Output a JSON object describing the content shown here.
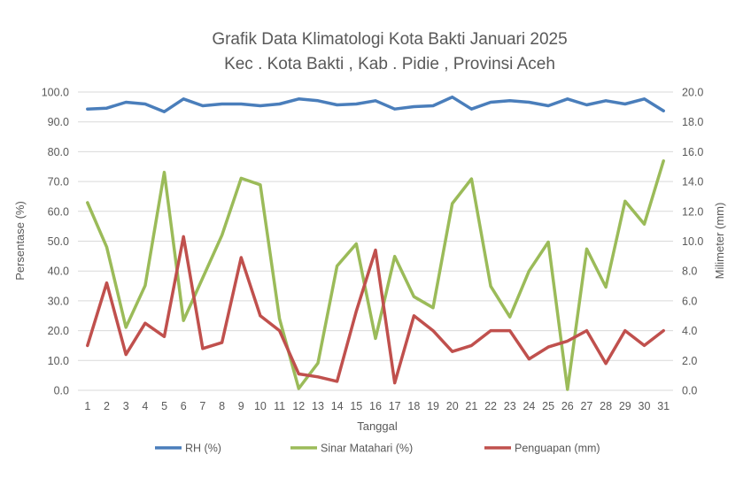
{
  "chart_data": {
    "type": "line",
    "title": "Grafik Data Klimatologi Kota Bakti Januari 2025",
    "subtitle": "Kec . Kota Bakti , Kab . Pidie , Provinsi  Aceh",
    "xlabel": "Tanggal",
    "ylabel": "Persentase (%)",
    "y2label": "Milimeter (mm)",
    "x": [
      1,
      2,
      3,
      4,
      5,
      6,
      7,
      8,
      9,
      10,
      11,
      12,
      13,
      14,
      15,
      16,
      17,
      18,
      19,
      20,
      21,
      22,
      23,
      24,
      25,
      26,
      27,
      28,
      29,
      30,
      31
    ],
    "ylim": [
      0,
      100
    ],
    "y2lim": [
      0,
      20
    ],
    "yticks": [
      "0.0",
      "10.0",
      "20.0",
      "30.0",
      "40.0",
      "50.0",
      "60.0",
      "70.0",
      "80.0",
      "90.0",
      "100.0"
    ],
    "y2ticks": [
      "0.0",
      "2.0",
      "4.0",
      "6.0",
      "8.0",
      "10.0",
      "12.0",
      "14.0",
      "16.0",
      "18.0",
      "20.0"
    ],
    "grid": "horizontal",
    "legend_position": "bottom",
    "series": [
      {
        "name": "RH (%)",
        "axis": "left",
        "color": "#4a7ebb",
        "values": [
          94.3,
          94.6,
          96.6,
          96.0,
          93.4,
          97.7,
          95.4,
          96.0,
          96.0,
          95.4,
          96.0,
          97.7,
          97.1,
          95.7,
          96.0,
          97.1,
          94.3,
          95.1,
          95.4,
          98.3,
          94.3,
          96.6,
          97.1,
          96.6,
          95.4,
          97.7,
          95.7,
          97.1,
          96.0,
          97.7,
          93.7
        ]
      },
      {
        "name": "Sinar Matahari (%)",
        "axis": "left",
        "color": "#9bbb59",
        "values": [
          62.9,
          48.0,
          21.1,
          35.1,
          73.1,
          23.4,
          37.7,
          52.0,
          71.1,
          68.9,
          24.0,
          0.6,
          9.1,
          41.7,
          49.1,
          17.4,
          44.9,
          31.4,
          27.7,
          62.6,
          70.9,
          34.9,
          24.6,
          40.0,
          49.7,
          0.3,
          47.4,
          34.6,
          63.4,
          55.7,
          76.9
        ]
      },
      {
        "name": "Penguapan (mm)",
        "axis": "right",
        "color": "#c0504d",
        "values": [
          3.0,
          7.2,
          2.4,
          4.5,
          3.6,
          10.3,
          2.8,
          3.2,
          8.9,
          5.0,
          4.0,
          1.1,
          0.9,
          0.6,
          5.3,
          9.4,
          0.5,
          5.0,
          4.0,
          2.6,
          3.0,
          4.0,
          4.0,
          2.1,
          2.9,
          3.3,
          4.0,
          1.8,
          4.0,
          3.0,
          4.0
        ]
      }
    ]
  }
}
